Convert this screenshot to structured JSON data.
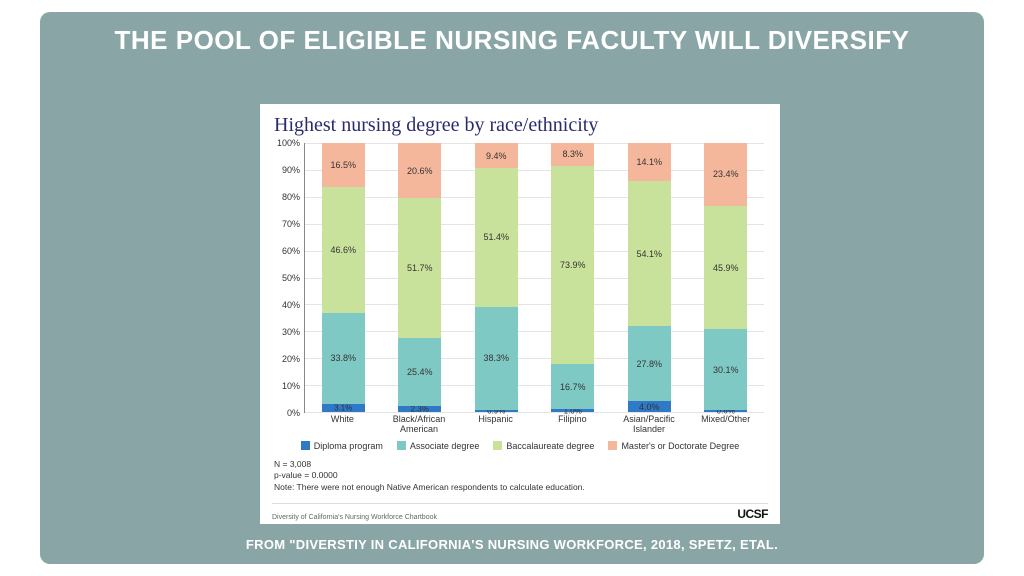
{
  "slide": {
    "background_color": "#8aa5a5",
    "title": "THE POOL OF ELIGIBLE NURSING FACULTY WILL DIVERSIFY",
    "title_color": "#ffffff",
    "title_fontsize": 26,
    "citation": "FROM \"DIVERSTIY IN CALIFORNIA'S NURSING WORKFORCE,  2018, SPETZ, ETAL."
  },
  "chart": {
    "type": "stacked-bar-100",
    "title": "Highest nursing degree by race/ethnicity",
    "title_color": "#2b2b6b",
    "title_fontsize": 20,
    "title_font": "serif",
    "background_color": "#ffffff",
    "grid_color": "#e4e4e4",
    "axis_color": "#888888",
    "label_fontsize": 9,
    "ylim": [
      0,
      100
    ],
    "ytick_step": 10,
    "ytick_suffix": "%",
    "categories": [
      "White",
      "Black/African American",
      "Hispanic",
      "Filipino",
      "Asian/Pacific Islander",
      "Mixed/Other"
    ],
    "series": [
      {
        "name": "Diploma program",
        "color": "#2f79c6"
      },
      {
        "name": "Associate degree",
        "color": "#7fc9c4"
      },
      {
        "name": "Baccalaureate degree",
        "color": "#c9e29b"
      },
      {
        "name": "Master's or Doctorate Degree",
        "color": "#f5b79c"
      }
    ],
    "values": [
      [
        3.1,
        33.8,
        46.6,
        16.5
      ],
      [
        2.3,
        25.4,
        51.7,
        20.6
      ],
      [
        0.9,
        38.3,
        51.4,
        9.4
      ],
      [
        1.0,
        16.7,
        73.9,
        8.3
      ],
      [
        4.0,
        27.8,
        54.1,
        14.1
      ],
      [
        0.6,
        30.1,
        45.9,
        23.4
      ]
    ],
    "bar_width": 0.56,
    "footnotes": {
      "n": "N = 3,008",
      "pvalue": "p-value = 0.0000",
      "note": "Note: There were not enough Native American respondents to calculate education."
    },
    "source_left": "Diversity of California's Nursing Workforce Chartbook",
    "source_right": "UCSF"
  }
}
